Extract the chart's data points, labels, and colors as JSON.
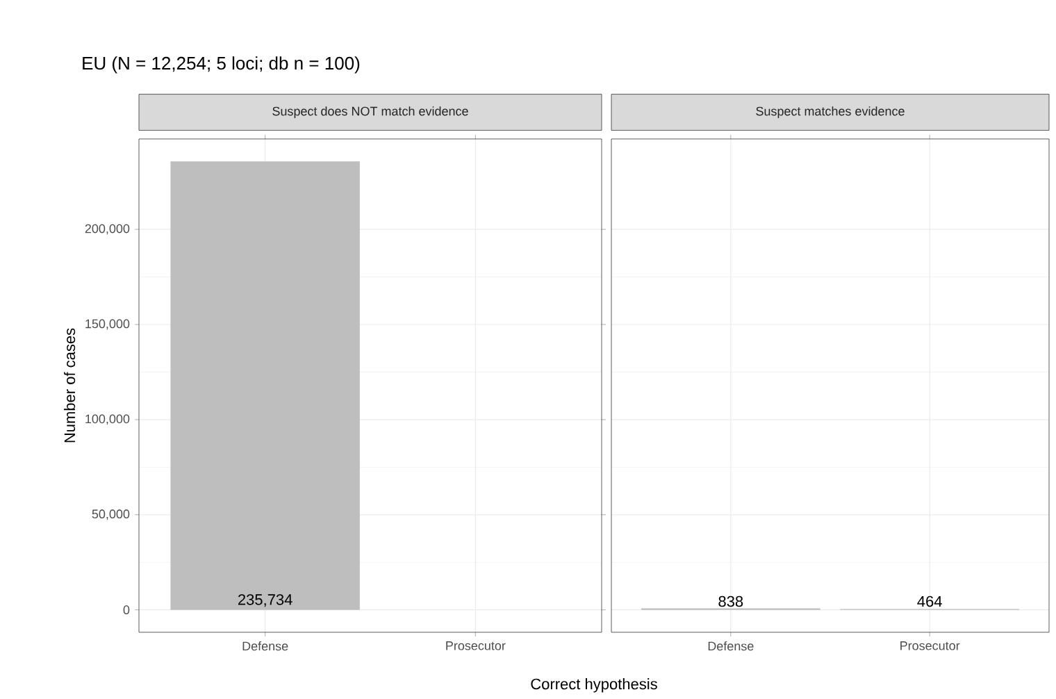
{
  "chart_data": [
    {
      "type": "bar",
      "title": "EU (N = 12,254; 5 loci; db n = 100)",
      "subtitle": "Suspect does NOT match evidence",
      "xlabel": "Correct hypothesis",
      "ylabel": "Number of cases",
      "categories": [
        "Defense",
        "Prosecutor"
      ],
      "values": [
        235734,
        null
      ],
      "value_labels": [
        "235,734",
        null
      ],
      "color": "#bebebe",
      "ylim": [
        -11787,
        247521
      ],
      "yticks": [
        0,
        {
          "value": 50000,
          "label": "50,000"
        },
        {
          "value": 100000,
          "label": "100,000"
        },
        {
          "value": 150000,
          "label": "150,000"
        },
        {
          "value": 200000,
          "label": "200,000"
        }
      ],
      "grid": true
    },
    {
      "type": "bar",
      "subtitle": "Suspect matches evidence",
      "categories": [
        "Defense",
        "Prosecutor"
      ],
      "values": [
        838,
        464
      ],
      "value_labels": [
        "838",
        "464"
      ],
      "color": "#bebebe",
      "ylim": [
        -11787,
        247521
      ],
      "yticks": [
        {
          "value": 0,
          "label": null
        },
        {
          "value": 50000,
          "label": null
        },
        {
          "value": 100000,
          "label": null
        },
        {
          "value": 150000,
          "label": null
        },
        {
          "value": 200000,
          "label": null
        }
      ],
      "grid": true,
      "tick_labels": "x"
    }
  ]
}
